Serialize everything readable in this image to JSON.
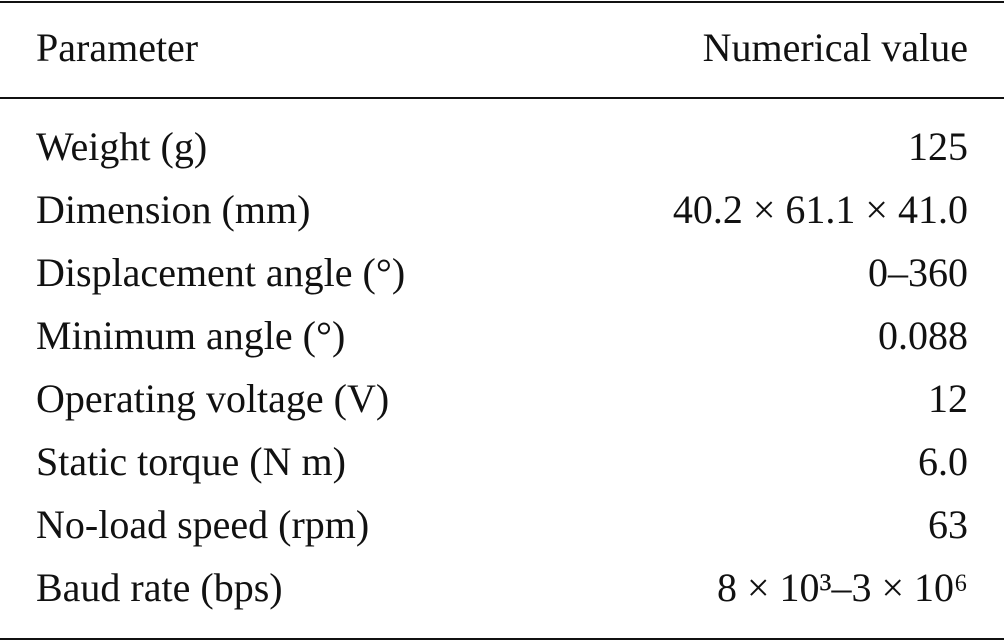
{
  "table": {
    "header": [
      "Parameter",
      "Numerical value"
    ],
    "rows": [
      [
        "Weight (g)",
        "125"
      ],
      [
        "Dimension (mm)",
        "40.2 × 61.1 × 41.0"
      ],
      [
        "Displacement angle (°)",
        "0–360"
      ],
      [
        "Minimum angle (°)",
        "0.088"
      ],
      [
        "Operating voltage (V)",
        "12"
      ],
      [
        "Static torque (N m)",
        "6.0"
      ],
      [
        "No-load speed (rpm)",
        "63"
      ],
      [
        "Baud rate (bps)",
        "8 × 10³–3 × 10⁶"
      ]
    ]
  }
}
